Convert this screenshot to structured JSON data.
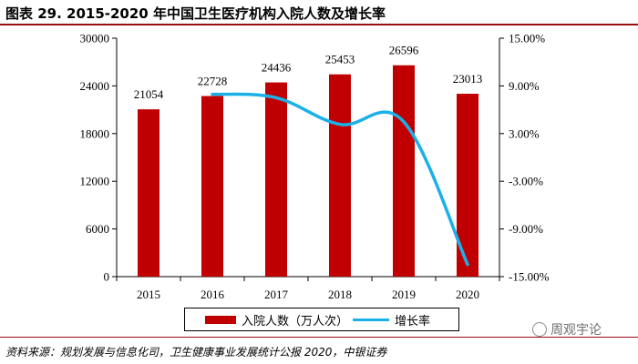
{
  "title": "图表 29. 2015-2020 年中国卫生医疗机构入院人数及增长率",
  "source": "资料来源：规划发展与信息化司，卫生健康事业发展统计公报 2020，中银证券",
  "watermark": "周观宇论",
  "chart_data": {
    "type": "bar",
    "categories": [
      "2015",
      "2016",
      "2017",
      "2018",
      "2019",
      "2020"
    ],
    "series": [
      {
        "name": "入院人数（万人次）",
        "type": "bar",
        "axis": "left",
        "color": "#c00000",
        "values": [
          21054,
          22728,
          24436,
          25453,
          26596,
          23013
        ],
        "labels": [
          "21054",
          "22728",
          "24436",
          "25453",
          "26596",
          "23013"
        ]
      },
      {
        "name": "增长率",
        "type": "line",
        "axis": "right",
        "color": "#1ab0e8",
        "values": [
          null,
          7.95,
          7.51,
          4.16,
          4.49,
          -13.47
        ]
      }
    ],
    "left_axis": {
      "ylim": [
        0,
        30000
      ],
      "ticks": [
        0,
        6000,
        12000,
        18000,
        24000,
        30000
      ],
      "tick_labels": [
        "0",
        "6000",
        "12000",
        "18000",
        "24000",
        "30000"
      ]
    },
    "right_axis": {
      "ylim": [
        -15,
        15
      ],
      "ticks": [
        -15,
        -9,
        -3,
        3,
        9,
        15
      ],
      "tick_labels": [
        "-15.00%",
        "-9.00%",
        "-3.00%",
        "3.00%",
        "9.00%",
        "15.00%"
      ]
    },
    "legend": {
      "position": "bottom"
    },
    "grid": false
  }
}
